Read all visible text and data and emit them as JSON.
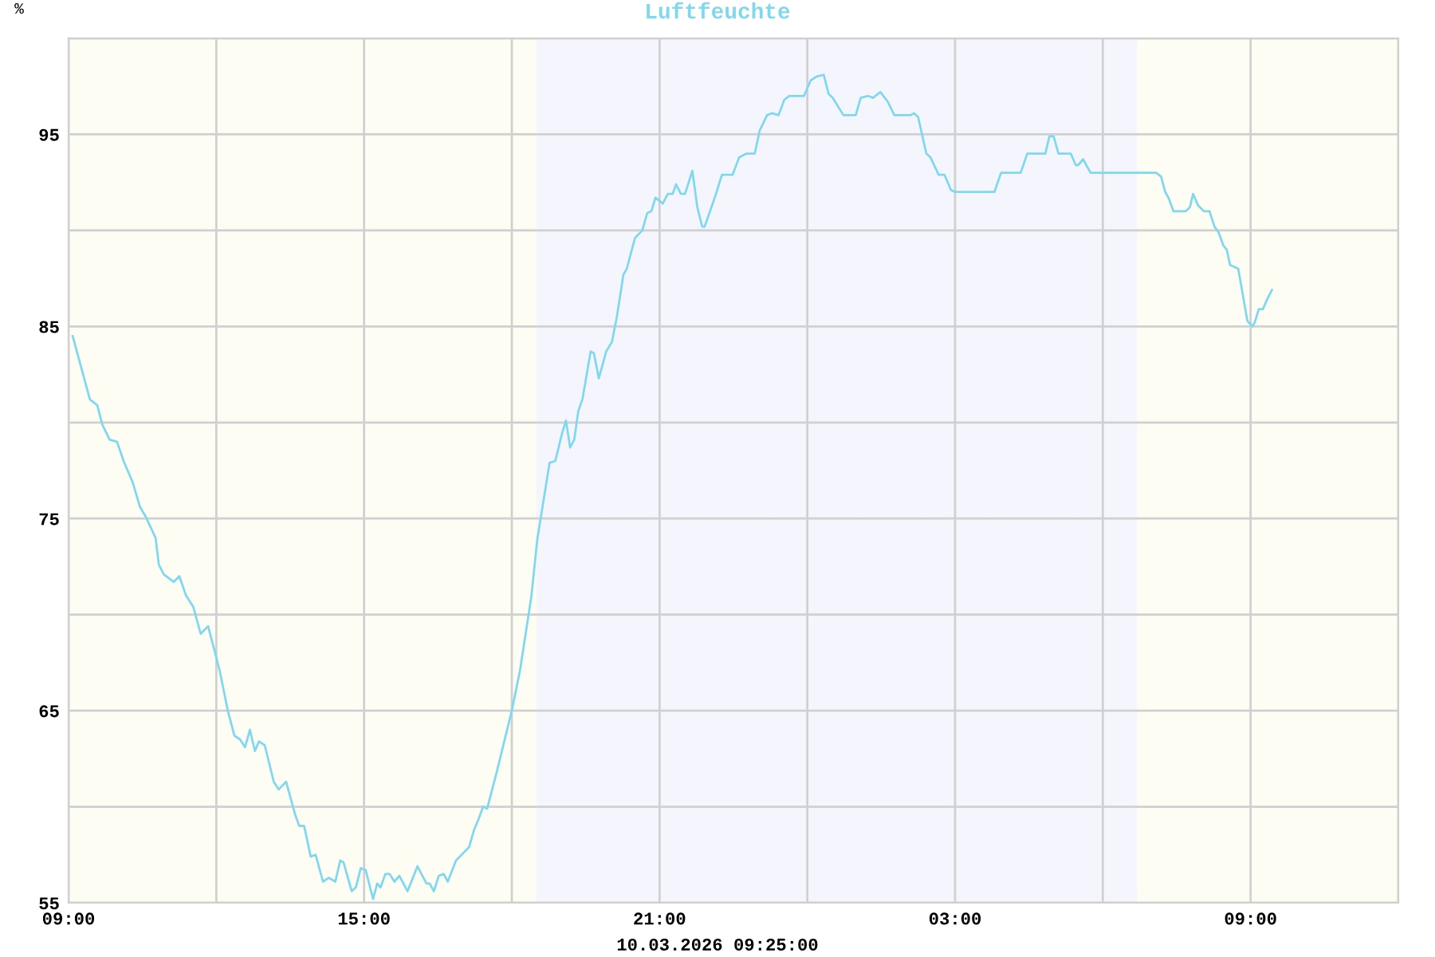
{
  "chart_data": {
    "type": "line",
    "title": "Luftfeuchte",
    "ylabel": "%",
    "xlabel": "10.03.2026 09:25:00",
    "series": [
      {
        "color": "#80d8ef",
        "x": [
          "2026-03-09T09:05",
          "2026-03-09T09:26",
          "2026-03-09T09:35",
          "2026-03-09T09:41",
          "2026-03-09T09:50",
          "2026-03-09T09:59",
          "2026-03-09T10:07",
          "2026-03-09T10:18",
          "2026-03-09T10:27",
          "2026-03-09T10:34",
          "2026-03-09T10:46",
          "2026-03-09T10:50",
          "2026-03-09T10:56",
          "2026-03-09T11:08",
          "2026-03-09T11:15",
          "2026-03-09T11:23",
          "2026-03-09T11:32",
          "2026-03-09T11:41",
          "2026-03-09T11:50",
          "2026-03-09T12:04",
          "2026-03-09T12:14",
          "2026-03-09T12:22",
          "2026-03-09T12:29",
          "2026-03-09T12:35",
          "2026-03-09T12:41",
          "2026-03-09T12:47",
          "2026-03-09T12:52",
          "2026-03-09T12:59",
          "2026-03-09T13:10",
          "2026-03-09T13:16",
          "2026-03-09T13:25",
          "2026-03-09T13:36",
          "2026-03-09T13:41",
          "2026-03-09T13:47",
          "2026-03-09T13:55",
          "2026-03-09T14:01",
          "2026-03-09T14:10",
          "2026-03-09T14:17",
          "2026-03-09T14:25",
          "2026-03-09T14:31",
          "2026-03-09T14:35",
          "2026-03-09T14:45",
          "2026-03-09T14:50",
          "2026-03-09T14:56",
          "2026-03-09T15:02",
          "2026-03-09T15:11",
          "2026-03-09T15:16",
          "2026-03-09T15:20",
          "2026-03-09T15:26",
          "2026-03-09T15:31",
          "2026-03-09T15:37",
          "2026-03-09T15:43",
          "2026-03-09T15:53",
          "2026-03-09T16:05",
          "2026-03-09T16:16",
          "2026-03-09T16:20",
          "2026-03-09T16:25",
          "2026-03-09T16:31",
          "2026-03-09T16:37",
          "2026-03-09T16:42",
          "2026-03-09T16:52",
          "2026-03-09T17:08",
          "2026-03-09T17:14",
          "2026-03-09T17:19",
          "2026-03-09T17:25",
          "2026-03-09T17:30",
          "2026-03-09T17:41",
          "2026-03-09T18:00",
          "2026-03-09T18:10",
          "2026-03-09T18:24",
          "2026-03-09T18:31",
          "2026-03-09T18:46",
          "2026-03-09T18:53",
          "2026-03-09T19:01",
          "2026-03-09T19:06",
          "2026-03-09T19:11",
          "2026-03-09T19:16",
          "2026-03-09T19:21",
          "2026-03-09T19:26",
          "2026-03-09T19:36",
          "2026-03-09T19:40",
          "2026-03-09T19:46",
          "2026-03-09T19:55",
          "2026-03-09T20:02",
          "2026-03-09T20:08",
          "2026-03-09T20:16",
          "2026-03-09T20:20",
          "2026-03-09T20:30",
          "2026-03-09T20:39",
          "2026-03-09T20:45",
          "2026-03-09T20:50",
          "2026-03-09T20:55",
          "2026-03-09T21:04",
          "2026-03-09T21:10",
          "2026-03-09T21:16",
          "2026-03-09T21:20",
          "2026-03-09T21:26",
          "2026-03-09T21:31",
          "2026-03-09T21:40",
          "2026-03-09T21:46",
          "2026-03-09T21:52",
          "2026-03-09T21:55",
          "2026-03-09T22:08",
          "2026-03-09T22:16",
          "2026-03-09T22:29",
          "2026-03-09T22:37",
          "2026-03-09T22:46",
          "2026-03-09T22:56",
          "2026-03-09T23:02",
          "2026-03-09T23:11",
          "2026-03-09T23:17",
          "2026-03-09T23:25",
          "2026-03-09T23:32",
          "2026-03-09T23:38",
          "2026-03-09T23:56",
          "2026-03-10T00:04",
          "2026-03-10T00:11",
          "2026-03-10T00:20",
          "2026-03-10T00:26",
          "2026-03-10T00:31",
          "2026-03-10T00:44",
          "2026-03-10T00:59",
          "2026-03-10T01:05",
          "2026-03-10T01:14",
          "2026-03-10T01:20",
          "2026-03-10T01:29",
          "2026-03-10T01:38",
          "2026-03-10T01:46",
          "2026-03-10T02:06",
          "2026-03-10T02:10",
          "2026-03-10T02:15",
          "2026-03-10T02:25",
          "2026-03-10T02:30",
          "2026-03-10T02:40",
          "2026-03-10T02:47",
          "2026-03-10T02:55",
          "2026-03-10T03:00",
          "2026-03-10T03:48",
          "2026-03-10T03:56",
          "2026-03-10T04:20",
          "2026-03-10T04:28",
          "2026-03-10T04:50",
          "2026-03-10T04:55",
          "2026-03-10T05:00",
          "2026-03-10T05:06",
          "2026-03-10T05:21",
          "2026-03-10T05:27",
          "2026-03-10T05:30",
          "2026-03-10T05:36",
          "2026-03-10T05:45",
          "2026-03-10T06:05",
          "2026-03-10T06:13",
          "2026-03-10T06:19",
          "2026-03-10T07:05",
          "2026-03-10T07:11",
          "2026-03-10T07:16",
          "2026-03-10T07:20",
          "2026-03-10T07:26",
          "2026-03-10T07:41",
          "2026-03-10T07:46",
          "2026-03-10T07:50",
          "2026-03-10T07:56",
          "2026-03-10T08:03",
          "2026-03-10T08:10",
          "2026-03-10T08:16",
          "2026-03-10T08:21",
          "2026-03-10T08:27",
          "2026-03-10T08:31",
          "2026-03-10T08:35",
          "2026-03-10T08:45",
          "2026-03-10T08:56",
          "2026-03-10T09:02",
          "2026-03-10T09:05",
          "2026-03-10T09:10",
          "2026-03-10T09:15",
          "2026-03-10T09:20",
          "2026-03-10T09:26"
        ],
        "values": [
          84.5,
          81.2,
          80.9,
          79.9,
          79.1,
          79.0,
          78.0,
          76.9,
          75.6,
          75.1,
          74.0,
          72.6,
          72.1,
          71.7,
          72.0,
          71.0,
          70.4,
          69.0,
          69.4,
          67.1,
          65.0,
          63.7,
          63.5,
          63.1,
          64.0,
          62.9,
          63.4,
          63.2,
          61.3,
          60.9,
          61.3,
          59.6,
          59.0,
          59.0,
          57.4,
          57.5,
          56.1,
          56.3,
          56.1,
          57.2,
          57.1,
          55.6,
          55.8,
          56.8,
          56.7,
          55.2,
          56.0,
          55.8,
          56.5,
          56.5,
          56.1,
          56.4,
          55.6,
          56.9,
          56.0,
          56.0,
          55.6,
          56.4,
          56.5,
          56.1,
          57.2,
          57.9,
          58.8,
          59.3,
          60.0,
          59.9,
          61.7,
          65.0,
          67.1,
          71.0,
          73.9,
          77.9,
          78.0,
          79.4,
          80.1,
          78.7,
          79.1,
          80.6,
          81.2,
          83.7,
          83.6,
          82.3,
          83.7,
          84.2,
          85.5,
          87.7,
          88.0,
          89.6,
          90.0,
          90.9,
          91.0,
          91.7,
          91.4,
          91.9,
          91.9,
          92.4,
          91.9,
          91.9,
          93.1,
          91.2,
          90.2,
          90.2,
          91.8,
          92.9,
          92.9,
          93.8,
          94.0,
          94.0,
          95.2,
          96.0,
          96.1,
          96.0,
          96.8,
          97.0,
          97.0,
          97.8,
          98.0,
          98.1,
          97.1,
          96.9,
          96.0,
          96.0,
          96.9,
          97.0,
          96.9,
          97.2,
          96.7,
          96.0,
          96.0,
          96.1,
          95.9,
          94.0,
          93.8,
          92.9,
          92.9,
          92.1,
          92.0,
          92.0,
          93.0,
          93.0,
          94.0,
          94.0,
          94.9,
          94.9,
          94.0,
          94.0,
          93.4,
          93.4,
          93.7,
          93.0,
          93.0,
          93.0,
          93.0,
          93.0,
          92.8,
          92.0,
          91.7,
          91.0,
          91.0,
          91.2,
          91.9,
          91.3,
          91.0,
          91.0,
          90.2,
          89.9,
          89.2,
          89.0,
          88.2,
          88.0,
          85.3,
          85.0,
          85.2,
          85.9,
          85.9,
          86.4,
          86.9
        ]
      }
    ],
    "xlim": [
      "2026-03-09T09:00",
      "2026-03-10T12:00"
    ],
    "xticks": [
      {
        "value": "2026-03-09T09:00",
        "label": "09:00"
      },
      {
        "value": "2026-03-09T12:00",
        "label": null
      },
      {
        "value": "2026-03-09T15:00",
        "label": "15:00"
      },
      {
        "value": "2026-03-09T18:00",
        "label": null
      },
      {
        "value": "2026-03-09T21:00",
        "label": "21:00"
      },
      {
        "value": "2026-03-10T00:00",
        "label": null
      },
      {
        "value": "2026-03-10T03:00",
        "label": "03:00"
      },
      {
        "value": "2026-03-10T06:00",
        "label": null
      },
      {
        "value": "2026-03-10T09:00",
        "label": "09:00"
      },
      {
        "value": "2026-03-10T12:00",
        "label": null
      }
    ],
    "ylim": [
      55,
      100
    ],
    "yticks": [
      55,
      {
        "value": 60,
        "label": null
      },
      65,
      {
        "value": 70,
        "label": null
      },
      75,
      {
        "value": 80,
        "label": null
      },
      85,
      {
        "value": 90,
        "label": null
      },
      95,
      {
        "value": 100,
        "label": null
      }
    ],
    "bands": [
      {
        "axis": "x",
        "from": "2026-03-09T09:00",
        "to": "2026-03-09T18:30",
        "color": "#fdfdf4"
      },
      {
        "axis": "x",
        "from": "2026-03-09T18:30",
        "to": "2026-03-10T06:42",
        "color": "#f5f6fd"
      },
      {
        "axis": "x",
        "from": "2026-03-10T06:42",
        "to": "2026-03-10T12:00",
        "color": "#fdfdf4"
      }
    ],
    "grid": true,
    "legend": false,
    "marker": "none",
    "line_style": "solid"
  }
}
